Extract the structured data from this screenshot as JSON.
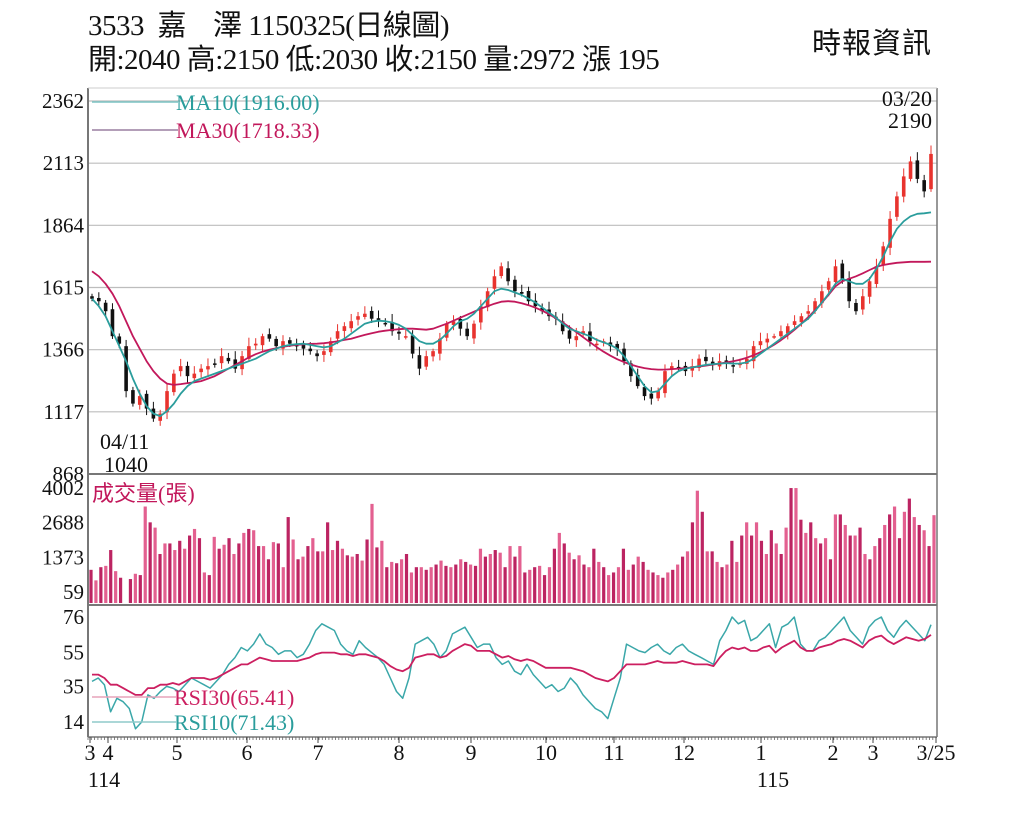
{
  "header": {
    "title": "3533  嘉    澤 1150325(日線圖)",
    "stock_code": "3533",
    "stock_name": "嘉澤",
    "date": "1150325",
    "chart_kind": "日線圖",
    "ohlc_line": "開:2040 高:2150 低:2030 收:2150 量:2972 漲 195",
    "open": 2040,
    "high": 2150,
    "low": 2030,
    "close": 2150,
    "volume": 2972,
    "change": 195,
    "source": "時報資訊"
  },
  "colors": {
    "up": "#e8332e",
    "down": "#111111",
    "ma10": "#2a9d9c",
    "ma30": "#c2185b",
    "volume": "#d6336c",
    "rsi10": "#3aa7a9",
    "rsi30": "#cc1f60",
    "grid": "#bdbdbd",
    "axis": "#777777"
  },
  "chart_data": [
    {
      "panel": "price",
      "type": "candlestick",
      "title": "3533 嘉澤 1150325(日線圖)",
      "y_ticks": [
        2362,
        2113,
        1864,
        1615,
        1366,
        1117,
        868
      ],
      "ylim": [
        868,
        2362
      ],
      "grid": true,
      "legend": [
        {
          "name": "MA10",
          "label": "MA10(1916.00)",
          "value": 1916.0
        },
        {
          "name": "MA30",
          "label": "MA30(1718.33)",
          "value": 1718.33
        }
      ],
      "annotations": [
        {
          "label_date": "03/20",
          "label_value": "2190",
          "type": "high"
        },
        {
          "label_date": "04/11",
          "label_value": "1040",
          "type": "low"
        }
      ],
      "close_series_approx": [
        1570,
        1560,
        1520,
        1420,
        1390,
        1200,
        1150,
        1180,
        1130,
        1090,
        1110,
        1200,
        1270,
        1300,
        1260,
        1270,
        1290,
        1300,
        1310,
        1340,
        1320,
        1290,
        1340,
        1380,
        1390,
        1420,
        1410,
        1380,
        1400,
        1390,
        1380,
        1370,
        1360,
        1340,
        1360,
        1400,
        1440,
        1460,
        1480,
        1500,
        1510,
        1490,
        1480,
        1470,
        1440,
        1430,
        1420,
        1350,
        1290,
        1340,
        1360,
        1410,
        1470,
        1480,
        1450,
        1420,
        1470,
        1540,
        1600,
        1660,
        1700,
        1640,
        1600,
        1590,
        1560,
        1540,
        1520,
        1500,
        1490,
        1440,
        1410,
        1420,
        1440,
        1400,
        1390,
        1400,
        1380,
        1370,
        1320,
        1260,
        1220,
        1180,
        1170,
        1200,
        1280,
        1300,
        1290,
        1280,
        1300,
        1330,
        1320,
        1310,
        1320,
        1310,
        1300,
        1310,
        1330,
        1380,
        1400,
        1410,
        1420,
        1440,
        1460,
        1480,
        1500,
        1520,
        1560,
        1600,
        1640,
        1700,
        1650,
        1560,
        1520,
        1580,
        1640,
        1700,
        1780,
        1890,
        1980,
        2060,
        2120,
        2050,
        2000,
        2150
      ],
      "ma10_approx": [
        1570,
        1540,
        1500,
        1440,
        1380,
        1320,
        1250,
        1190,
        1140,
        1110,
        1100,
        1120,
        1150,
        1190,
        1220,
        1240,
        1250,
        1260,
        1270,
        1280,
        1290,
        1300,
        1310,
        1320,
        1330,
        1345,
        1360,
        1370,
        1380,
        1385,
        1388,
        1390,
        1385,
        1380,
        1375,
        1380,
        1395,
        1410,
        1430,
        1450,
        1470,
        1478,
        1482,
        1480,
        1475,
        1465,
        1450,
        1425,
        1400,
        1390,
        1390,
        1405,
        1430,
        1460,
        1480,
        1490,
        1510,
        1540,
        1570,
        1600,
        1610,
        1605,
        1595,
        1585,
        1570,
        1555,
        1535,
        1515,
        1495,
        1470,
        1450,
        1440,
        1430,
        1420,
        1405,
        1395,
        1385,
        1370,
        1340,
        1300,
        1260,
        1220,
        1195,
        1200,
        1230,
        1260,
        1280,
        1290,
        1295,
        1300,
        1305,
        1308,
        1310,
        1312,
        1310,
        1310,
        1315,
        1330,
        1350,
        1370,
        1390,
        1410,
        1430,
        1450,
        1470,
        1490,
        1520,
        1555,
        1590,
        1630,
        1650,
        1640,
        1630,
        1630,
        1650,
        1690,
        1740,
        1800,
        1850,
        1880,
        1900,
        1910,
        1912,
        1916
      ],
      "ma30_approx": [
        1680,
        1660,
        1630,
        1590,
        1540,
        1480,
        1420,
        1370,
        1320,
        1280,
        1250,
        1230,
        1225,
        1228,
        1232,
        1235,
        1240,
        1250,
        1260,
        1275,
        1290,
        1305,
        1320,
        1335,
        1348,
        1358,
        1366,
        1372,
        1378,
        1382,
        1385,
        1387,
        1389,
        1390,
        1392,
        1395,
        1400,
        1405,
        1410,
        1418,
        1425,
        1432,
        1438,
        1442,
        1445,
        1448,
        1450,
        1450,
        1448,
        1446,
        1450,
        1460,
        1470,
        1482,
        1494,
        1506,
        1518,
        1530,
        1540,
        1550,
        1558,
        1560,
        1558,
        1552,
        1544,
        1534,
        1522,
        1508,
        1492,
        1475,
        1456,
        1436,
        1416,
        1396,
        1376,
        1358,
        1342,
        1328,
        1316,
        1306,
        1298,
        1292,
        1288,
        1286,
        1286,
        1288,
        1290,
        1292,
        1295,
        1298,
        1302,
        1306,
        1310,
        1315,
        1320,
        1326,
        1334,
        1344,
        1356,
        1370,
        1386,
        1404,
        1424,
        1446,
        1470,
        1496,
        1524,
        1554,
        1586,
        1620,
        1640,
        1650,
        1660,
        1672,
        1685,
        1698,
        1705,
        1710,
        1714,
        1716,
        1718,
        1718,
        1718,
        1718.33
      ]
    },
    {
      "panel": "volume",
      "type": "bar",
      "title": "成交量(張)",
      "y_ticks": [
        4002,
        2688,
        1373,
        59
      ],
      "ylim": [
        0,
        4300
      ],
      "values_approx": [
        900,
        500,
        1000,
        1050,
        1650,
        850,
        600,
        0,
        550,
        750,
        700,
        3300,
        2700,
        2500,
        1500,
        1900,
        1900,
        1650,
        2000,
        1700,
        2200,
        2450,
        2100,
        800,
        700,
        2150,
        1700,
        1850,
        2100,
        1500,
        1900,
        2300,
        2450,
        2400,
        1800,
        1800,
        1300,
        1950,
        1900,
        1000,
        2900,
        2050,
        1300,
        1400,
        1800,
        2100,
        1600,
        1600,
        2700,
        1650,
        2000,
        1700,
        1450,
        1400,
        1500,
        1250,
        2050,
        3400,
        1750,
        2000,
        1000,
        1200,
        1150,
        1300,
        1500,
        800,
        1000,
        1000,
        900,
        1000,
        1100,
        1250,
        1050,
        1000,
        1100,
        1300,
        1200,
        1100,
        1050,
        1700,
        1400,
        1500,
        1650,
        1550,
        1000,
        1800,
        1400,
        1800,
        800,
        900,
        1000,
        1050,
        700,
        1000,
        1700,
        2300,
        1900,
        1550,
        1300,
        1450,
        1100,
        1000,
        1700,
        1200,
        1000,
        700,
        800,
        1000,
        1700,
        900,
        1100,
        1400,
        1200,
        900,
        800,
        700,
        600,
        800,
        900,
        1100,
        1400,
        1600,
        2700,
        3900,
        3100,
        1600,
        1600,
        1200,
        1000,
        1100,
        2000,
        1200,
        2200,
        2700,
        2200,
        2700,
        2000,
        1500,
        2400,
        1900,
        1500,
        2500,
        4000,
        4000,
        2800,
        2300,
        2700,
        2100,
        1900,
        2100,
        1300,
        3000,
        3000,
        2600,
        2200,
        2200,
        2500,
        1500,
        1300,
        1800,
        2100,
        2600,
        3000,
        3300,
        2100,
        3100,
        3600,
        2900,
        2600,
        2400,
        1800,
        2972
      ]
    },
    {
      "panel": "rsi",
      "type": "line",
      "y_ticks": [
        76,
        55,
        35,
        14
      ],
      "ylim": [
        5,
        82
      ],
      "series": [
        {
          "name": "RSI30",
          "label": "RSI30(65.41)",
          "value": 65.41
        },
        {
          "name": "RSI10",
          "label": "RSI10(71.43)",
          "value": 71.43
        }
      ],
      "rsi10_approx": [
        38,
        40,
        36,
        20,
        28,
        26,
        22,
        10,
        14,
        30,
        28,
        32,
        35,
        34,
        32,
        36,
        40,
        38,
        36,
        34,
        38,
        42,
        48,
        52,
        58,
        56,
        60,
        66,
        60,
        58,
        54,
        56,
        56,
        52,
        54,
        60,
        68,
        72,
        70,
        68,
        60,
        56,
        54,
        62,
        58,
        55,
        52,
        48,
        40,
        32,
        28,
        40,
        60,
        62,
        64,
        60,
        52,
        56,
        66,
        68,
        70,
        64,
        58,
        60,
        60,
        52,
        48,
        50,
        44,
        42,
        48,
        42,
        38,
        34,
        36,
        32,
        34,
        40,
        36,
        30,
        26,
        22,
        20,
        16,
        28,
        40,
        60,
        58,
        56,
        55,
        58,
        60,
        56,
        54,
        58,
        60,
        56,
        54,
        52,
        50,
        48,
        62,
        68,
        76,
        72,
        74,
        62,
        64,
        68,
        72,
        58,
        70,
        72,
        76,
        60,
        56,
        56,
        62,
        64,
        68,
        72,
        76,
        68,
        64,
        60,
        70,
        74,
        76,
        68,
        64,
        70,
        74,
        70,
        66,
        62,
        71.43
      ],
      "rsi30_approx": [
        42,
        42,
        40,
        36,
        36,
        34,
        32,
        30,
        30,
        34,
        34,
        36,
        36,
        37,
        36,
        38,
        40,
        40,
        40,
        39,
        40,
        42,
        44,
        46,
        48,
        48,
        50,
        52,
        51,
        50,
        50,
        50,
        50,
        50,
        51,
        52,
        54,
        55,
        55,
        55,
        54,
        54,
        53,
        54,
        54,
        53,
        52,
        50,
        47,
        45,
        44,
        46,
        52,
        53,
        54,
        54,
        52,
        53,
        56,
        58,
        60,
        59,
        56,
        56,
        56,
        54,
        52,
        53,
        51,
        50,
        51,
        50,
        48,
        46,
        46,
        46,
        46,
        46,
        45,
        44,
        42,
        40,
        39,
        38,
        40,
        44,
        48,
        48,
        48,
        48,
        49,
        50,
        49,
        49,
        49,
        50,
        49,
        48,
        48,
        48,
        47,
        52,
        56,
        58,
        57,
        58,
        56,
        56,
        58,
        59,
        55,
        58,
        60,
        62,
        58,
        56,
        56,
        58,
        59,
        60,
        62,
        63,
        62,
        60,
        58,
        62,
        64,
        65,
        62,
        60,
        62,
        64,
        63,
        62,
        63,
        65.41
      ]
    }
  ],
  "x_axis": {
    "labels": [
      {
        "text": "3",
        "pos": 90
      },
      {
        "text": "4",
        "pos": 108
      },
      {
        "text": "5",
        "pos": 177
      },
      {
        "text": "6",
        "pos": 247
      },
      {
        "text": "7",
        "pos": 318
      },
      {
        "text": "8",
        "pos": 399
      },
      {
        "text": "9",
        "pos": 471
      },
      {
        "text": "10",
        "pos": 546
      },
      {
        "text": "11",
        "pos": 614
      },
      {
        "text": "12",
        "pos": 684
      },
      {
        "text": "1",
        "pos": 761
      },
      {
        "text": "2",
        "pos": 833
      },
      {
        "text": "3",
        "pos": 873
      },
      {
        "text": "3/25",
        "pos": 936
      }
    ],
    "year_labels": [
      {
        "text": "114",
        "pos": 104
      },
      {
        "text": "115",
        "pos": 773
      }
    ]
  }
}
